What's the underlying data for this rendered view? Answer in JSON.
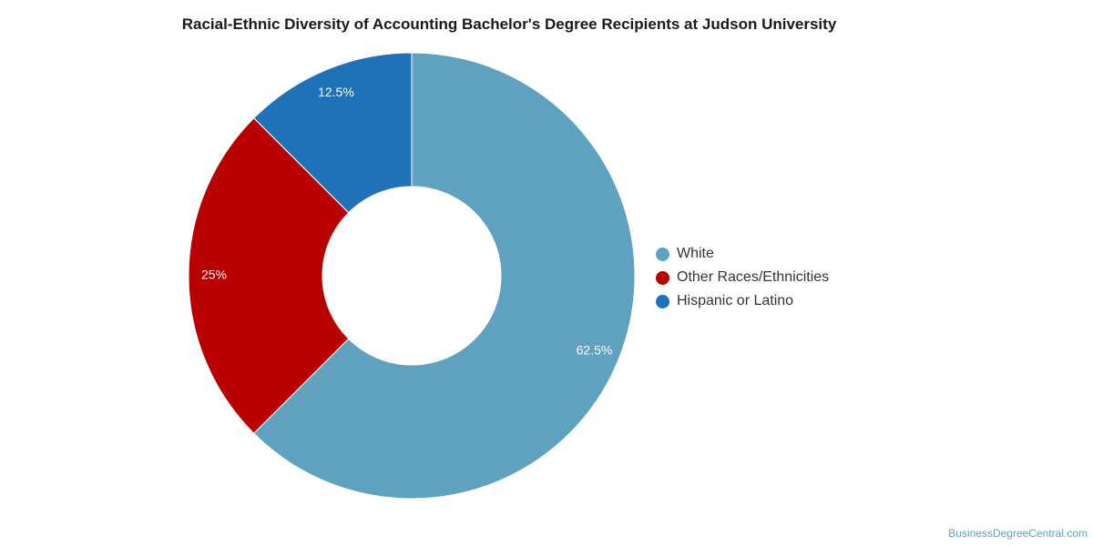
{
  "chart_data": {
    "type": "pie",
    "variant": "donut",
    "title": "Racial-Ethnic Diversity of Accounting Bachelor's Degree Recipients at Judson University",
    "series": [
      {
        "name": "White",
        "value": 62.5,
        "label": "62.5%",
        "color": "#5fa2c0"
      },
      {
        "name": "Other Races/Ethnicities",
        "value": 25,
        "label": "25%",
        "color": "#b90000"
      },
      {
        "name": "Hispanic or Latino",
        "value": 12.5,
        "label": "12.5%",
        "color": "#1f72b7"
      }
    ],
    "legend_position": "right"
  },
  "source_text": "BusinessDegreeCentral.com"
}
